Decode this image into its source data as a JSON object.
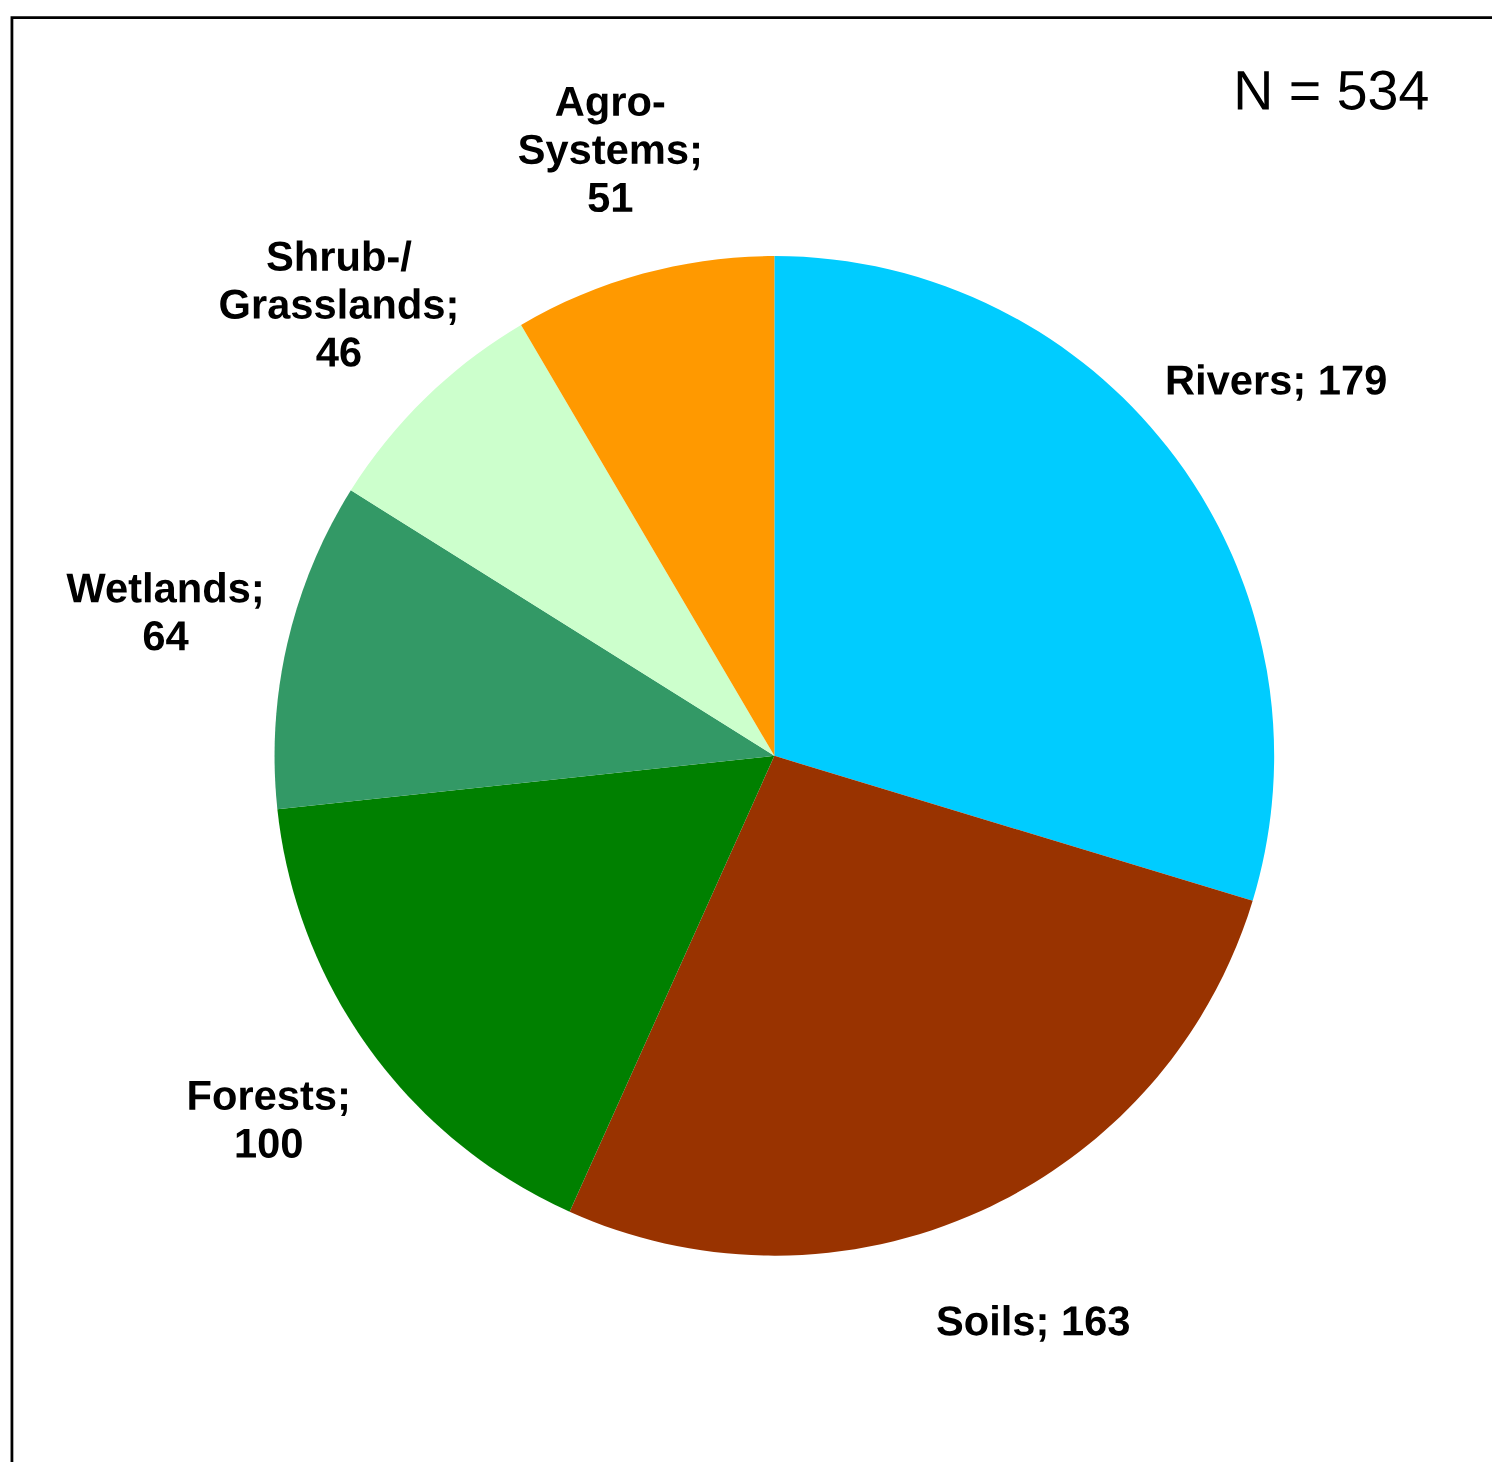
{
  "chart_data": {
    "type": "pie",
    "categories": [
      "Rivers; 179",
      "Soils; 163",
      "Forests;\n100",
      "Wetlands;\n64",
      "Shrub-/\nGrasslands;\n46",
      "Agro-\nSystems;\n51"
    ],
    "values": [
      179,
      163,
      100,
      64,
      46,
      51
    ],
    "colors": [
      "#00ccff",
      "#993300",
      "#008000",
      "#339966",
      "#ccffcc",
      "#ff9900"
    ],
    "annotations": [
      "N = 534"
    ]
  }
}
